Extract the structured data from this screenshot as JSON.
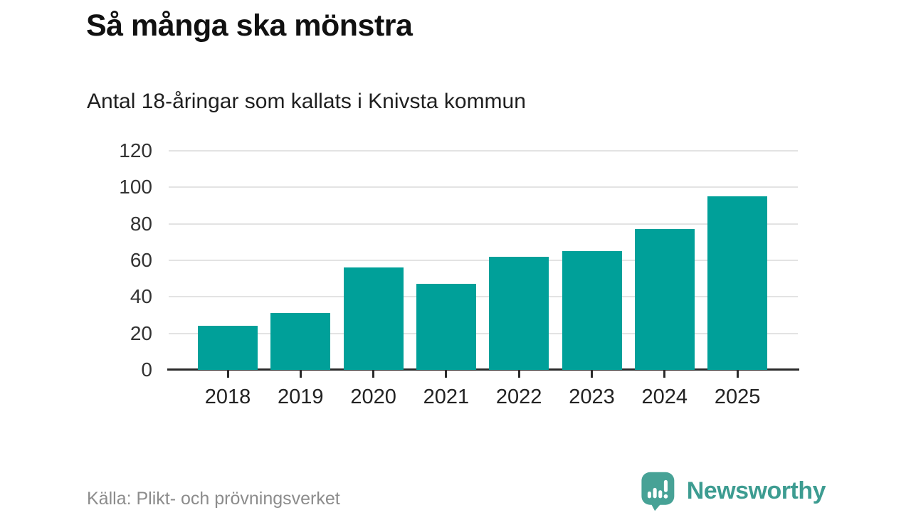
{
  "header": {
    "title": "Så många ska mönstra",
    "subtitle": "Antal 18-åringar som kallats i Knivsta kommun"
  },
  "chart_data": {
    "type": "bar",
    "categories": [
      "2018",
      "2019",
      "2020",
      "2021",
      "2022",
      "2023",
      "2024",
      "2025"
    ],
    "values": [
      24,
      31,
      56,
      47,
      62,
      65,
      77,
      95
    ],
    "title": "Så många ska mönstra",
    "subtitle": "Antal 18-åringar som kallats i Knivsta kommun",
    "xlabel": "",
    "ylabel": "",
    "ylim": [
      0,
      120
    ],
    "yticks": [
      0,
      20,
      40,
      60,
      80,
      100,
      120
    ],
    "grid": "horizontal-only",
    "legend": "none"
  },
  "footer": {
    "source": "Källa: Plikt- och prövningsverket",
    "logo_text": "Newsworthy"
  },
  "colors": {
    "bar": "#00a099",
    "grid": "#e3e3e3",
    "axis": "#2a2a2a",
    "logo": "#47a296",
    "logo_text": "#3d9c91"
  }
}
